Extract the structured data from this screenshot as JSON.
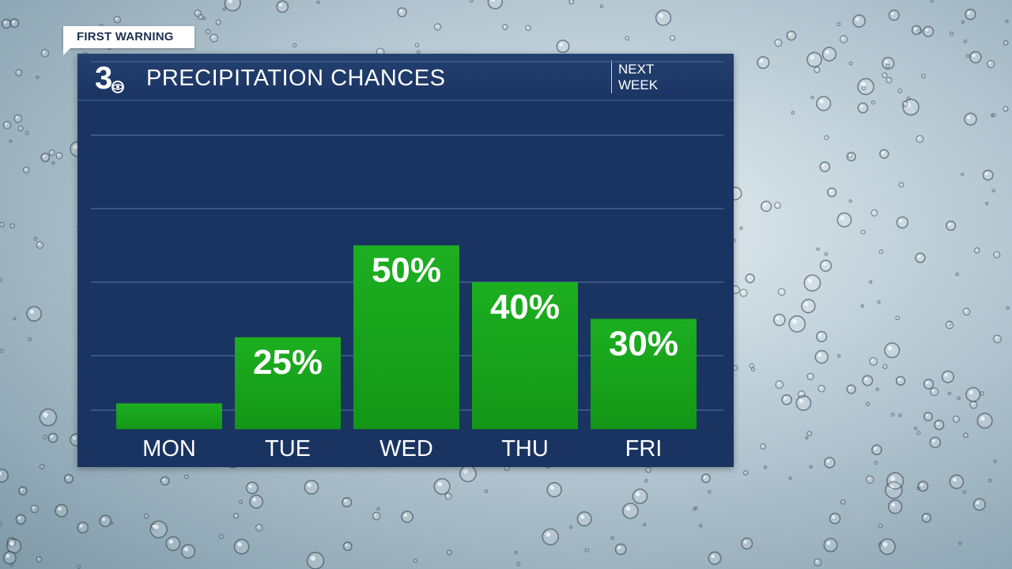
{
  "tag": {
    "label": "FIRST WARNING"
  },
  "header": {
    "logo_text": "3",
    "title": "PRECIPITATION CHANCES",
    "subtitle_line1": "NEXT",
    "subtitle_line2": "WEEK"
  },
  "colors": {
    "panel": "#1a3461",
    "header": "#22406f",
    "bar": "#1aa31e",
    "gridline": "#3b5683",
    "text": "#ffffff"
  },
  "chart_data": {
    "type": "bar",
    "title": "PRECIPITATION CHANCES",
    "subtitle": "NEXT WEEK",
    "categories": [
      "MON",
      "TUE",
      "WED",
      "THU",
      "FRI"
    ],
    "values": [
      7,
      25,
      50,
      40,
      30
    ],
    "data_labels": [
      "",
      "25%",
      "50%",
      "40%",
      "30%"
    ],
    "ylim": [
      0,
      100
    ],
    "grid": true,
    "legend": "none"
  }
}
